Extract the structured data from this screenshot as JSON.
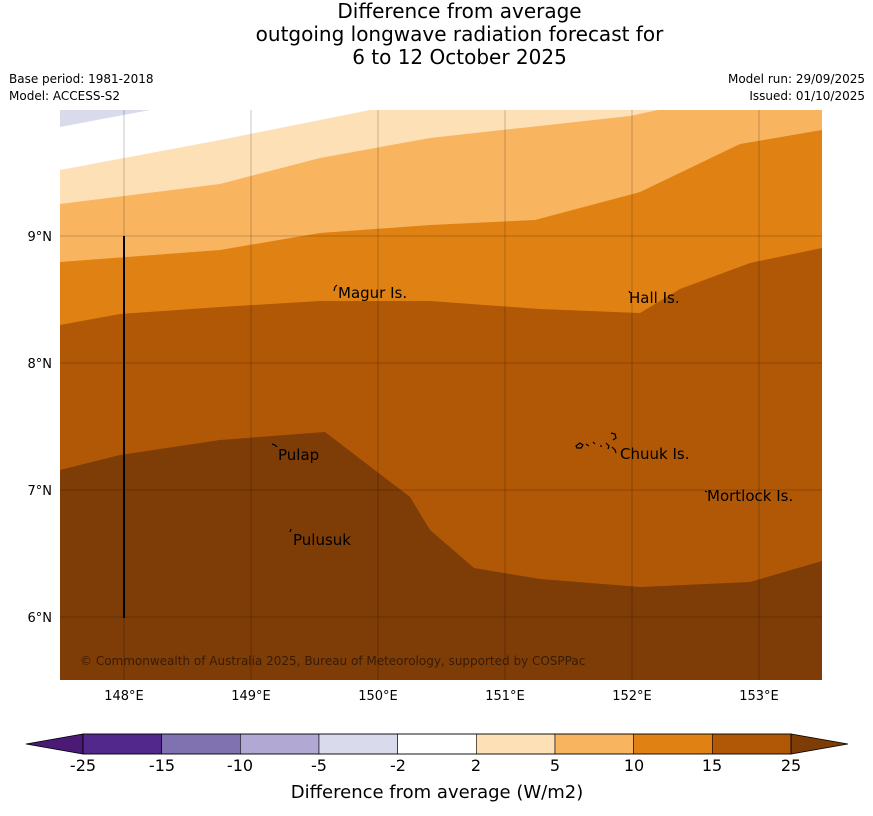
{
  "title": {
    "line1": "Difference from average",
    "line2": "outgoing longwave radiation forecast for",
    "line3": "6 to 12 October 2025"
  },
  "meta": {
    "base_period": "Base period: 1981-2018",
    "model": "Model: ACCESS-S2",
    "model_run": "Model run: 29/09/2025",
    "issued": "Issued: 01/10/2025"
  },
  "map": {
    "lat_ticks": [
      "9°N",
      "8°N",
      "7°N",
      "6°N"
    ],
    "lon_ticks": [
      "148°E",
      "149°E",
      "150°E",
      "151°E",
      "152°E",
      "153°E"
    ],
    "places": [
      "Magur Is.",
      "Hall Is.",
      "Pulap",
      "Chuuk Is.",
      "Mortlock Is.",
      "Pulusuk"
    ],
    "copyright": "© Commonwealth of Australia 2025, Bureau of Meteorology, supported by COSPPac"
  },
  "colorbar": {
    "labels": [
      "-25",
      "-15",
      "-10",
      "-5",
      "-2",
      "2",
      "5",
      "10",
      "15",
      "25"
    ],
    "colors": [
      "#4b1a76",
      "#52288c",
      "#8071b0",
      "#b1a9d3",
      "#d9daeb",
      "#ffffff",
      "#fde0b5",
      "#f9b45f",
      "#e08213",
      "#b05806",
      "#7e3c07"
    ],
    "title": "Difference from average (W/m2)"
  }
}
